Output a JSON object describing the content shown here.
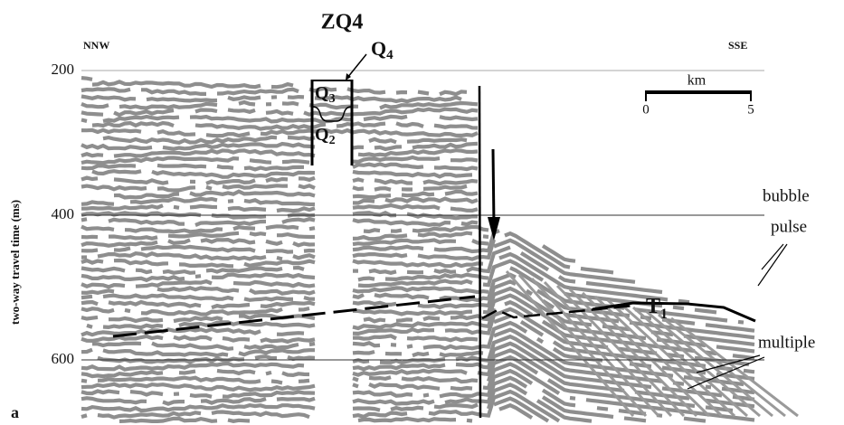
{
  "chart_data": {
    "type": "seismic",
    "title": "ZQ4",
    "panel_label": "a",
    "y_label": "two-way travel time (ms)",
    "ylim": [
      200,
      690
    ],
    "yticks": [
      200,
      400,
      600
    ],
    "grid": true,
    "left_direction": "NNW",
    "right_direction": "SSE",
    "scale_bar": {
      "unit": "km",
      "ticks": [
        0,
        5
      ]
    },
    "units": [
      {
        "letter": "Q",
        "subscript": "4"
      },
      {
        "letter": "Q",
        "subscript": "3"
      },
      {
        "letter": "Q",
        "subscript": "2"
      }
    ],
    "horizon": {
      "letter": "T",
      "subscript": "1"
    },
    "annotations": [
      "bubble",
      "pulse",
      "multiple"
    ]
  }
}
